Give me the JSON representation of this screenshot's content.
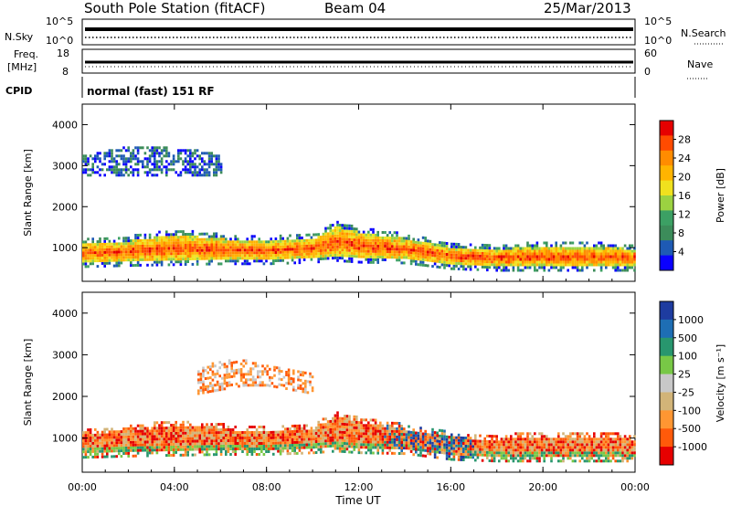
{
  "header": {
    "title": "South Pole Station (fitACF)",
    "beam": "Beam 04",
    "date": "25/Mar/2013"
  },
  "noise_panel": {
    "left_label": "N.Sky",
    "right_label": "N.Search",
    "left_ticks": [
      "10^5",
      "10^0"
    ],
    "right_ticks": [
      "10^5",
      "10^0"
    ]
  },
  "freq_panel": {
    "left_label_line1": "Freq.",
    "left_label_line2": "[MHz]",
    "right_label": "Nave",
    "left_ticks": [
      "18",
      "8"
    ],
    "right_ticks": [
      "60",
      "0"
    ]
  },
  "cpid_panel": {
    "label": "CPID",
    "text": "normal (fast) 151 RF"
  },
  "colorbars": {
    "power": {
      "label": "Power [dB]",
      "ticks": [
        "28",
        "24",
        "20",
        "16",
        "12",
        "8",
        "4"
      ],
      "colors": [
        "#e60000",
        "#ff4b00",
        "#ff8c00",
        "#ffb400",
        "#f0e11e",
        "#9bd241",
        "#3ca064",
        "#3c8c5a",
        "#1e5ab4",
        "#0a00ff"
      ]
    },
    "velocity": {
      "label": "Velocity [m s⁻¹]",
      "ticks": [
        "1000",
        "500",
        "100",
        "25",
        "-25",
        "-100",
        "-500",
        "-1000"
      ],
      "colors": [
        "#1e3ca0",
        "#1e6eb4",
        "#28966e",
        "#78c846",
        "#c8c8c8",
        "#d2b478",
        "#ff9632",
        "#ff5a0a",
        "#e60000"
      ]
    }
  },
  "chart_data": [
    {
      "type": "heatmap",
      "title": "Power",
      "xlabel": "Time UT",
      "ylabel": "Slant Range [km]",
      "xticks": [
        "00:00",
        "04:00",
        "08:00",
        "12:00",
        "16:00",
        "20:00",
        "00:00"
      ],
      "yticks": [
        "1000",
        "2000",
        "3000",
        "4000"
      ],
      "ylim": [
        180,
        4500
      ],
      "xlim": [
        0,
        24
      ],
      "grid": false,
      "colorbar": {
        "label": "Power [dB]",
        "min": 0,
        "max": 32
      },
      "bands": [
        {
          "name": "main",
          "x": [
            0,
            2,
            4,
            6,
            8,
            10,
            11,
            12,
            14,
            16,
            18,
            20,
            22,
            24
          ],
          "y_low": [
            650,
            680,
            700,
            720,
            720,
            760,
            800,
            760,
            740,
            600,
            560,
            560,
            560,
            560
          ],
          "y_high": [
            1150,
            1200,
            1350,
            1250,
            1180,
            1250,
            1550,
            1400,
            1250,
            1050,
            1000,
            1050,
            1050,
            1000
          ],
          "value_dB": 26
        },
        {
          "name": "upper-3000",
          "x": [
            0,
            1,
            2,
            3,
            4,
            5,
            6
          ],
          "y_low": [
            2800,
            2800,
            2800,
            2800,
            2800,
            2800,
            2800
          ],
          "y_high": [
            3300,
            3400,
            3500,
            3500,
            3450,
            3400,
            3300
          ],
          "value_dB": 6
        }
      ]
    },
    {
      "type": "heatmap",
      "title": "Velocity",
      "xlabel": "Time UT",
      "ylabel": "Slant Range [km]",
      "xticks": [
        "00:00",
        "04:00",
        "08:00",
        "12:00",
        "16:00",
        "20:00",
        "00:00"
      ],
      "yticks": [
        "1000",
        "2000",
        "3000",
        "4000"
      ],
      "ylim": [
        180,
        4500
      ],
      "xlim": [
        0,
        24
      ],
      "grid": false,
      "colorbar": {
        "label": "Velocity [m s⁻¹]",
        "min": -1000,
        "max": 1000
      },
      "bands": [
        {
          "name": "main",
          "x": [
            0,
            2,
            4,
            6,
            8,
            10,
            11,
            12,
            14,
            16,
            18,
            20,
            22,
            24
          ],
          "y_low": [
            650,
            680,
            700,
            720,
            720,
            760,
            800,
            760,
            740,
            600,
            560,
            560,
            560,
            560
          ],
          "y_high": [
            1150,
            1200,
            1350,
            1250,
            1180,
            1250,
            1550,
            1400,
            1250,
            1050,
            1000,
            1050,
            1050,
            1000
          ],
          "value_ms": -300
        },
        {
          "name": "upper-2500",
          "x": [
            5,
            6,
            7,
            8,
            9,
            10
          ],
          "y_low": [
            2100,
            2200,
            2300,
            2300,
            2200,
            2100
          ],
          "y_high": [
            2700,
            2900,
            2900,
            2800,
            2700,
            2600
          ],
          "value_ms": -300
        }
      ]
    }
  ]
}
